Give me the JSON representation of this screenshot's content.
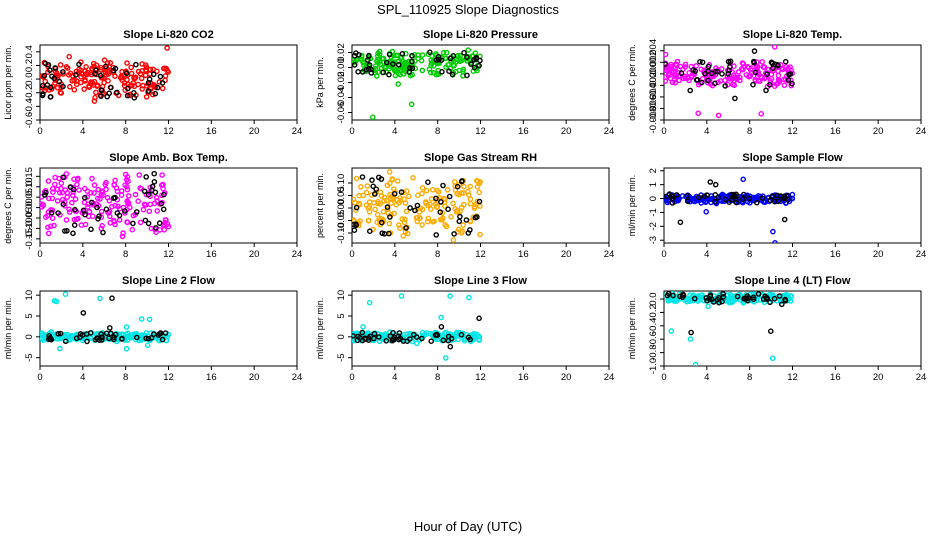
{
  "figure": {
    "title": "SPL_110925  Slope Diagnostics",
    "xlabel": "Hour of Day (UTC)"
  },
  "chart_data": [
    {
      "type": "scatter",
      "title": "Slope Li-820 CO2",
      "ylabel": "Licor ppm per min.",
      "color": "#ff0000",
      "xlim": [
        0,
        24
      ],
      "ylim": [
        -0.6,
        0.5
      ],
      "yticks": [
        -0.6,
        -0.4,
        -0.2,
        0.0,
        0.2,
        0.4
      ],
      "xticks": [
        0,
        4,
        8,
        12,
        16,
        20,
        24
      ],
      "series_band": [
        -0.25,
        0.25
      ],
      "data_x_range": [
        0,
        12
      ]
    },
    {
      "type": "scatter",
      "title": "Slope Li-820 Pressure",
      "ylabel": "kPa per min.",
      "color": "#00cc00",
      "xlim": [
        0,
        24
      ],
      "ylim": [
        -0.07,
        0.03
      ],
      "yticks": [
        -0.06,
        -0.04,
        -0.02,
        0.0,
        0.02
      ],
      "xticks": [
        0,
        4,
        8,
        12,
        16,
        20,
        24
      ],
      "series_band": [
        -0.01,
        0.02
      ],
      "data_x_range": [
        0,
        12
      ]
    },
    {
      "type": "scatter",
      "title": "Slope Li-820 Temp.",
      "ylabel": "degrees C per min.",
      "color": "#ff00ff",
      "xlim": [
        0,
        24
      ],
      "ylim": [
        -0.008,
        0.005
      ],
      "yticks": [
        -0.008,
        -0.006,
        -0.004,
        -0.002,
        0.0,
        0.002,
        0.004
      ],
      "xticks": [
        0,
        4,
        8,
        12,
        16,
        20,
        24
      ],
      "series_band": [
        -0.002,
        0.002
      ],
      "data_x_range": [
        0,
        12
      ]
    },
    {
      "type": "scatter",
      "title": "Slope Amb. Box Temp.",
      "ylabel": "degrees C per min.",
      "color": "#ff00ff",
      "xlim": [
        0,
        24
      ],
      "ylim": [
        -0.17,
        0.19
      ],
      "yticks": [
        -0.15,
        -0.1,
        -0.05,
        0.0,
        0.05,
        0.1,
        0.15
      ],
      "xticks": [
        0,
        4,
        8,
        12,
        16,
        20,
        24
      ],
      "series_band": [
        -0.12,
        0.15
      ],
      "data_x_range": [
        0,
        12
      ]
    },
    {
      "type": "scatter",
      "title": "Slope Gas Stream RH",
      "ylabel": "percent per min.",
      "color": "#ffaa00",
      "xlim": [
        0,
        24
      ],
      "ylim": [
        -0.14,
        0.16
      ],
      "yticks": [
        -0.1,
        -0.05,
        0.0,
        0.05,
        0.1
      ],
      "xticks": [
        0,
        4,
        8,
        12,
        16,
        20,
        24
      ],
      "series_band": [
        -0.1,
        0.12
      ],
      "data_x_range": [
        0,
        12
      ]
    },
    {
      "type": "scatter",
      "title": "Slope Sample Flow",
      "ylabel": "ml/min per min.",
      "color": "#0000ff",
      "xlim": [
        0,
        24
      ],
      "ylim": [
        -3.2,
        2.2
      ],
      "yticks": [
        -3,
        -2,
        -1,
        0,
        1,
        2
      ],
      "xticks": [
        0,
        4,
        8,
        12,
        16,
        20,
        24
      ],
      "series_band": [
        -0.3,
        0.3
      ],
      "data_x_range": [
        0,
        12
      ]
    },
    {
      "type": "scatter",
      "title": "Slope Line 2 Flow",
      "ylabel": "ml/min per min.",
      "color": "#00e5e5",
      "xlim": [
        0,
        24
      ],
      "ylim": [
        -7,
        11
      ],
      "yticks": [
        -5,
        0,
        5,
        10
      ],
      "xticks": [
        0,
        4,
        8,
        12,
        16,
        20,
        24
      ],
      "series_band": [
        -1,
        1
      ],
      "data_x_range": [
        0,
        12
      ]
    },
    {
      "type": "scatter",
      "title": "Slope Line 3 Flow",
      "ylabel": "ml/min per min.",
      "color": "#00e5e5",
      "xlim": [
        0,
        24
      ],
      "ylim": [
        -7,
        11
      ],
      "yticks": [
        -5,
        0,
        5,
        10
      ],
      "xticks": [
        0,
        4,
        8,
        12,
        16,
        20,
        24
      ],
      "series_band": [
        -1,
        1
      ],
      "data_x_range": [
        0,
        12
      ]
    },
    {
      "type": "scatter",
      "title": "Slope Line 4 (LT) Flow",
      "ylabel": "ml/min per min.",
      "color": "#00e5e5",
      "xlim": [
        0,
        24
      ],
      "ylim": [
        -1.0,
        0.12
      ],
      "yticks": [
        -1.0,
        -0.8,
        -0.6,
        -0.4,
        -0.2,
        0.0
      ],
      "xticks": [
        0,
        4,
        8,
        12,
        16,
        20,
        24
      ],
      "series_band": [
        -0.05,
        0.08
      ],
      "data_x_range": [
        0,
        12
      ]
    }
  ]
}
